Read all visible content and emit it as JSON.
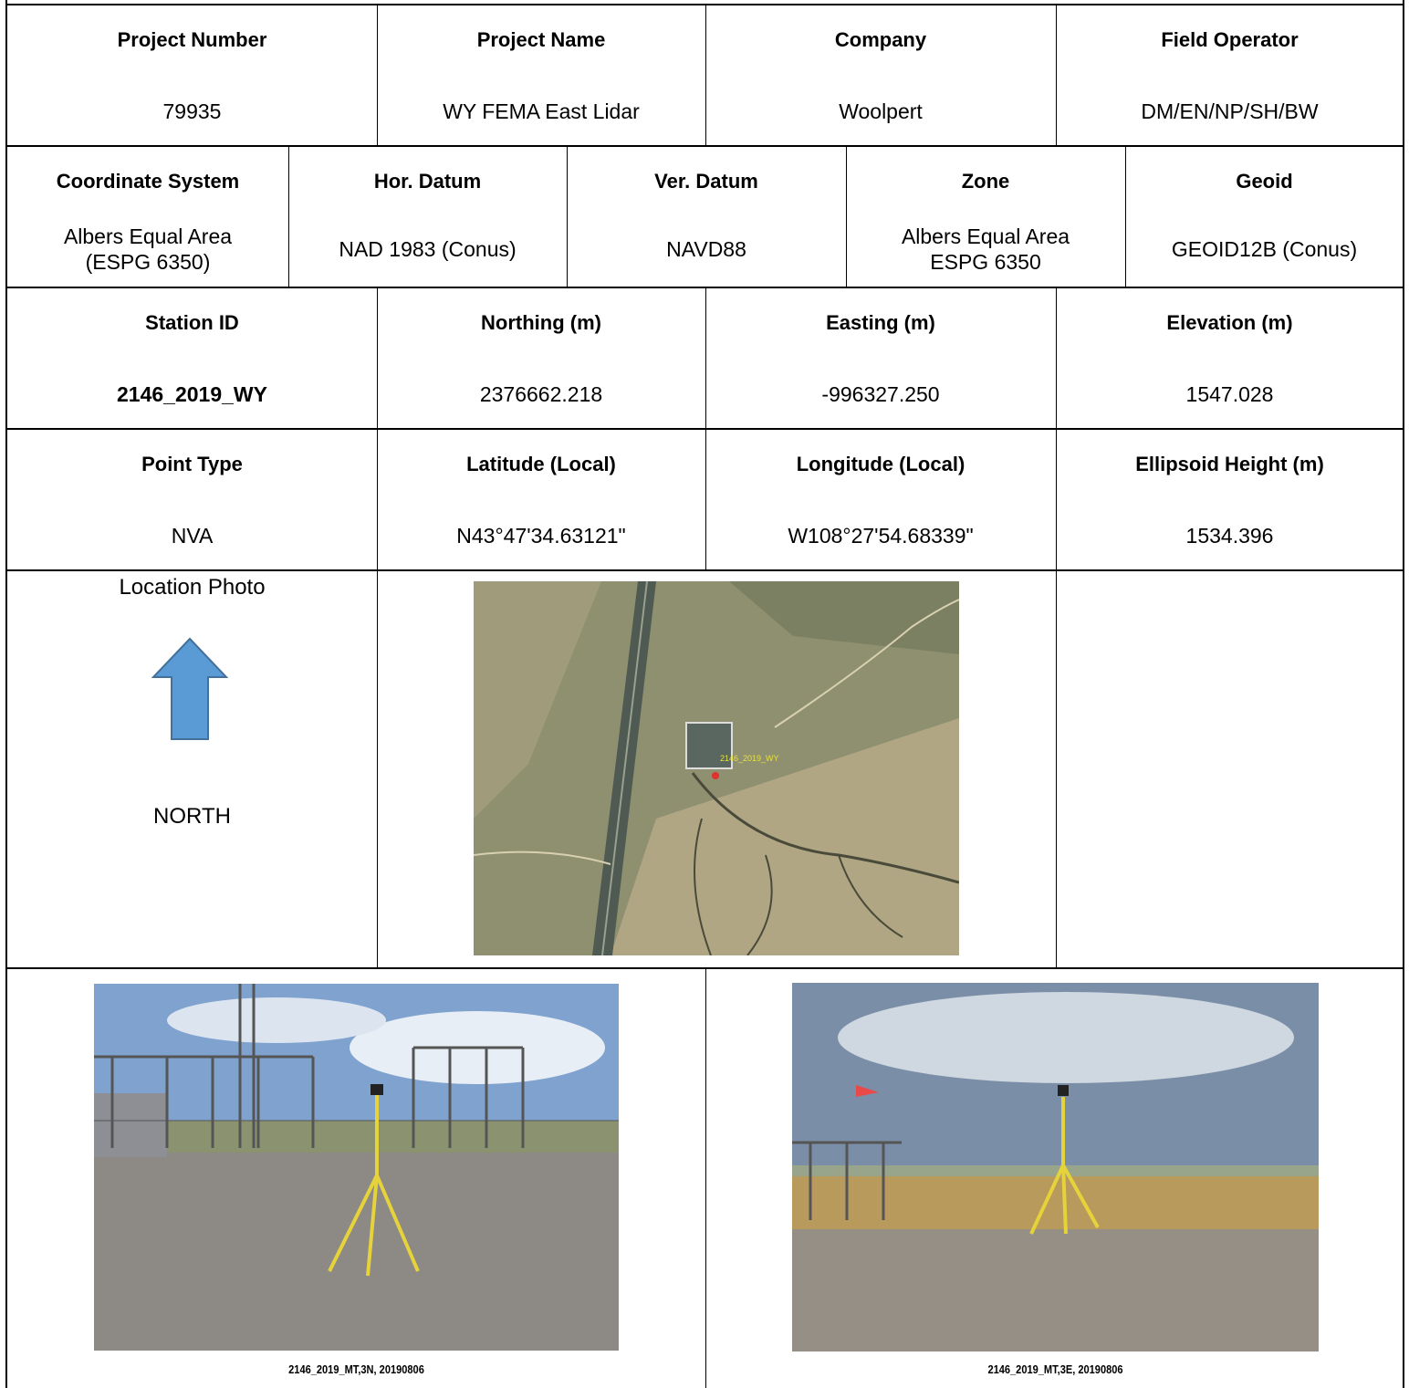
{
  "rows": [
    {
      "headers": [
        "Project Number",
        "Project Name",
        "Company",
        "Field Operator"
      ],
      "values": [
        "79935",
        "WY FEMA East Lidar",
        "Woolpert",
        "DM/EN/NP/SH/BW"
      ]
    },
    {
      "headers": [
        "Coordinate System",
        "Hor. Datum",
        "Ver. Datum",
        "Zone",
        "Geoid"
      ],
      "values": [
        "Albers Equal Area\n(ESPG 6350)",
        "NAD 1983 (Conus)",
        "NAVD88",
        "Albers Equal Area\nESPG 6350",
        "GEOID12B (Conus)"
      ]
    },
    {
      "headers": [
        "Station ID",
        "Northing (m)",
        "Easting (m)",
        "Elevation (m)"
      ],
      "values": [
        "2146_2019_WY",
        "2376662.218",
        "-996327.250",
        "1547.028"
      ]
    },
    {
      "headers": [
        "Point Type",
        "Latitude (Local)",
        "Longitude (Local)",
        "Ellipsoid Height (m)"
      ],
      "values": [
        "NVA",
        "N43°47'34.63121\"",
        "W108°27'54.68339\"",
        "1534.396"
      ]
    }
  ],
  "location": {
    "label": "Location Photo",
    "direction": "NORTH",
    "map_label": "2146_2019_WY"
  },
  "photos": [
    {
      "caption": "2146_2019_MT,3N, 20190806"
    },
    {
      "caption": "2146_2019_MT,3E, 20190806"
    }
  ]
}
